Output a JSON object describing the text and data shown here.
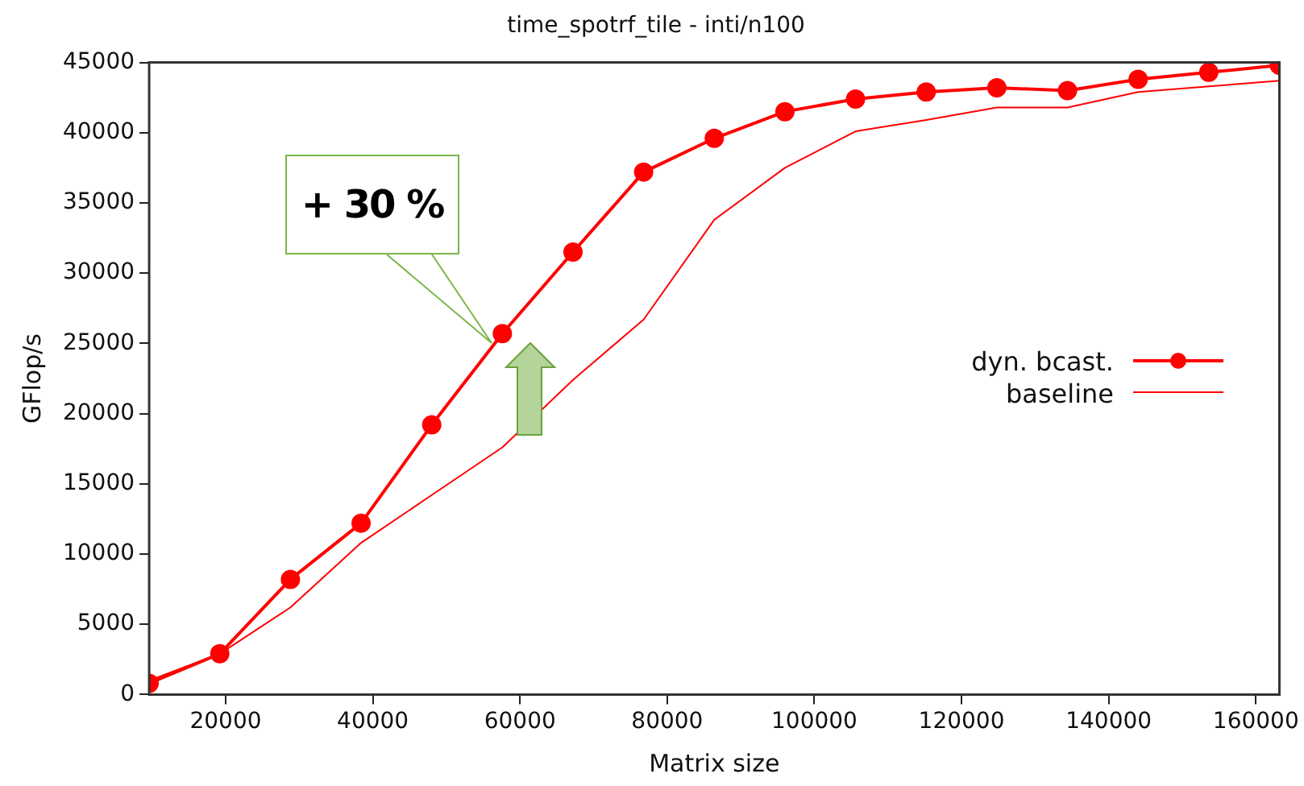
{
  "chart_data": {
    "type": "line",
    "title": "time_spotrf_tile - inti/n100",
    "xlabel": "Matrix size",
    "ylabel": "GFlop/s",
    "x": [
      9600,
      19200,
      28800,
      38400,
      48000,
      57600,
      67200,
      76800,
      86400,
      96000,
      105600,
      115200,
      124800,
      134400,
      144000,
      153600,
      163200
    ],
    "series": [
      {
        "name": "dyn. bcast.",
        "color": "#ff0000",
        "marker": "circle",
        "values": [
          800,
          2900,
          8200,
          12200,
          19200,
          25700,
          31500,
          37200,
          39600,
          41500,
          42400,
          42900,
          43200,
          43000,
          43800,
          44300,
          44800
        ]
      },
      {
        "name": "baseline",
        "color": "#ff0000",
        "marker": "none",
        "values": [
          1000,
          2900,
          6200,
          10800,
          14200,
          17600,
          22400,
          26700,
          33800,
          37500,
          40100,
          40900,
          41800,
          41800,
          42900,
          43300,
          43700
        ]
      }
    ],
    "xlim": [
      9600,
      163200
    ],
    "xticks": [
      20000,
      40000,
      60000,
      80000,
      100000,
      120000,
      140000,
      160000
    ],
    "ylim": [
      0,
      45000
    ],
    "yticks": [
      0,
      5000,
      10000,
      15000,
      20000,
      25000,
      30000,
      35000,
      40000,
      45000
    ],
    "grid": false,
    "legend": "right",
    "annotations": [
      "+ 30 %"
    ]
  }
}
